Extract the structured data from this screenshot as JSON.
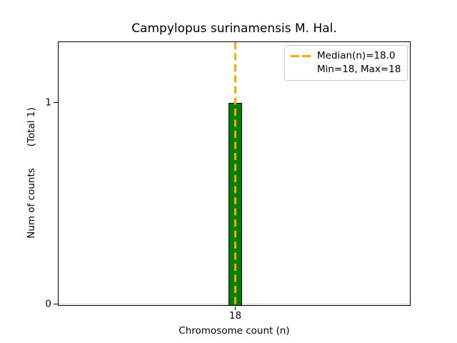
{
  "chart_data": {
    "type": "bar",
    "title": "Campylopus surinamensis M. Hal.",
    "xlabel": "Chromosome count (n)",
    "ylabel": "Num of counts",
    "ylabel_suffix": "(Total 1)",
    "categories": [
      "18"
    ],
    "values": [
      1
    ],
    "x_ticks": [
      "18"
    ],
    "y_ticks": {
      "zero": "0",
      "one": "1"
    },
    "ylim": [
      0,
      1.3
    ],
    "xlim_note": "single bin centered on 18",
    "grid": false,
    "legend_position": "upper right",
    "legend": [
      {
        "handle": "orange-dashed-line",
        "label": "Median(n)=18.0"
      },
      {
        "handle": "none",
        "label": "Min=18, Max=18"
      }
    ],
    "stats": {
      "median_n": 18.0,
      "min": 18,
      "max": 18,
      "total_counts": 1
    },
    "colors": {
      "bar_fill": "#008000",
      "bar_edge": "#000000",
      "median_line": "#ffa500",
      "zero_baseline": "#c8c8c8",
      "legend_border": "#cccccc",
      "spine": "#000000",
      "text": "#000000"
    }
  }
}
